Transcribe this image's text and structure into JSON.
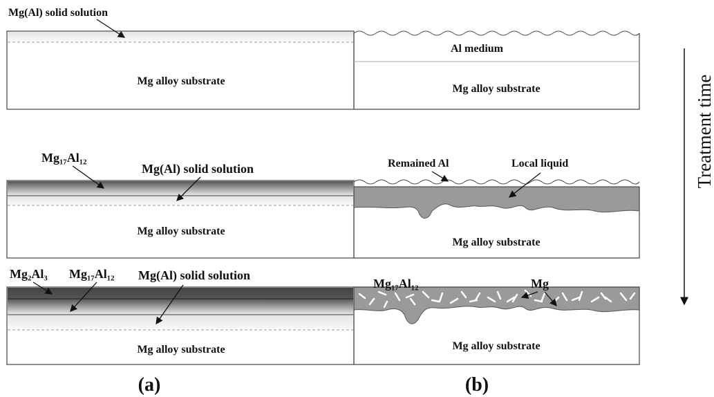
{
  "panel_a": {
    "stages": [
      {
        "labels": [
          "Mg(Al) solid solution"
        ],
        "substrate": "Mg alloy substrate"
      },
      {
        "labels": [
          "Mg₁₇Al₁₂",
          "Mg(Al) solid solution"
        ],
        "substrate": "Mg alloy substrate"
      },
      {
        "labels": [
          "Mg₂Al₃",
          "Mg₁₇Al₁₂",
          "Mg(Al) solid solution"
        ],
        "substrate": "Mg alloy substrate"
      }
    ],
    "caption": "(a)"
  },
  "panel_b": {
    "stages": [
      {
        "labels": [
          "Al medium"
        ],
        "substrate": "Mg alloy substrate"
      },
      {
        "labels": [
          "Remained Al",
          "Local liquid"
        ],
        "substrate": "Mg alloy substrate"
      },
      {
        "labels": [
          "Mg₁₇Al₁₂",
          "Mg"
        ],
        "substrate": "Mg alloy substrate"
      }
    ],
    "caption": "(b)"
  },
  "axis_label": "Treatment time"
}
